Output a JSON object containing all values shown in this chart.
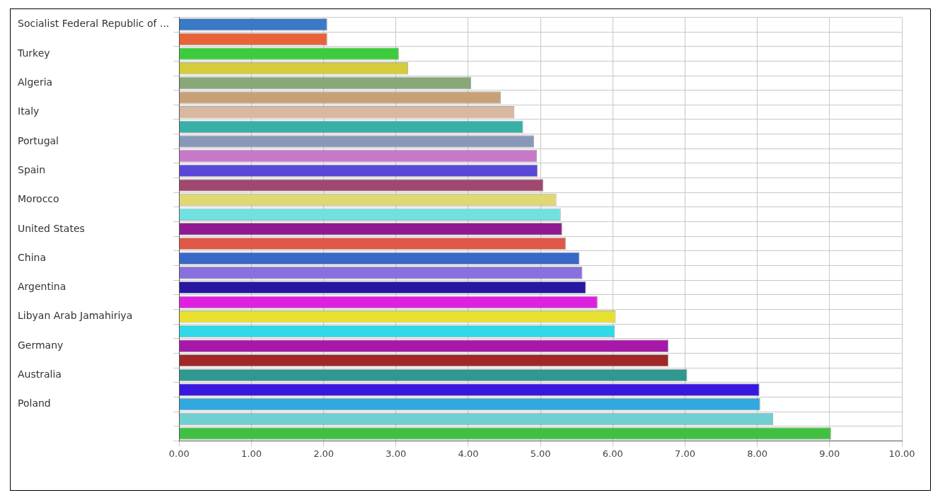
{
  "chart_data": {
    "type": "bar",
    "orientation": "horizontal",
    "categories": [
      "Socialist Federal Republic of ...",
      null,
      "Turkey",
      null,
      "Algeria",
      null,
      "Italy",
      null,
      "Portugal",
      null,
      "Spain",
      null,
      "Morocco",
      null,
      "United States",
      null,
      "China",
      null,
      "Argentina",
      null,
      "Libyan Arab Jamahiriya",
      null,
      "Germany",
      null,
      "Australia",
      null,
      "Poland",
      null,
      null
    ],
    "values": [
      2.05,
      2.05,
      3.04,
      3.17,
      4.04,
      4.45,
      4.64,
      4.76,
      4.91,
      4.95,
      4.96,
      5.04,
      5.22,
      5.28,
      5.3,
      5.35,
      5.54,
      5.58,
      5.63,
      5.79,
      6.04,
      6.03,
      6.77,
      6.77,
      7.03,
      8.03,
      8.04,
      8.22,
      9.02
    ],
    "colors": [
      "#3a78c8",
      "#e8623a",
      "#3ccc3c",
      "#d4cc3a",
      "#88a878",
      "#c8a078",
      "#d8b8a0",
      "#38b0a8",
      "#8898b8",
      "#c878c8",
      "#5a48d8",
      "#a04870",
      "#e0d870",
      "#70e0e0",
      "#901890",
      "#e05848",
      "#3868c8",
      "#8870e0",
      "#2818a0",
      "#e020e0",
      "#e8e030",
      "#30d8e8",
      "#a818a8",
      "#a02828",
      "#309890",
      "#3818e0",
      "#30a8e0",
      "#70d0d0",
      "#40c040"
    ],
    "xlim": [
      0,
      10
    ],
    "xticks": [
      {
        "value": 0,
        "label": "0.00"
      },
      {
        "value": 1,
        "label": "1.00"
      },
      {
        "value": 2,
        "label": "2.00"
      },
      {
        "value": 3,
        "label": "3.00"
      },
      {
        "value": 4,
        "label": "4.00"
      },
      {
        "value": 5,
        "label": "5.00"
      },
      {
        "value": 6,
        "label": "6.00"
      },
      {
        "value": 7,
        "label": "7.00"
      },
      {
        "value": 8,
        "label": "8.00"
      },
      {
        "value": 9,
        "label": "9.00"
      },
      {
        "value": 10,
        "label": "10.00"
      }
    ],
    "grid": true,
    "legend": false
  }
}
